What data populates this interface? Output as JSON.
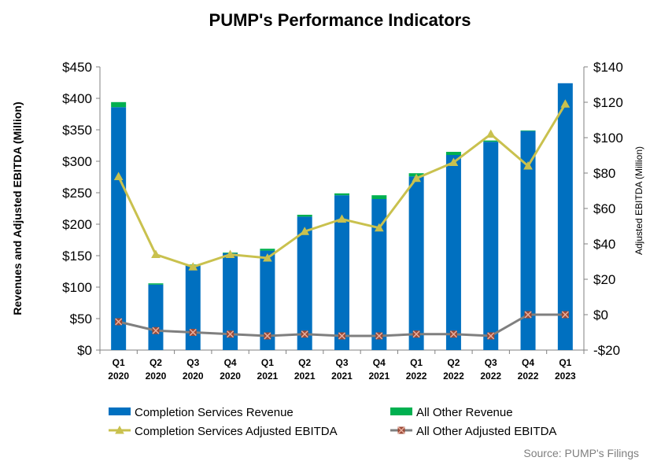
{
  "chart_data": {
    "type": "bar",
    "title": "PUMP's Performance Indicators",
    "categories": [
      [
        "Q1",
        "2020"
      ],
      [
        "Q2",
        "2020"
      ],
      [
        "Q3",
        "2020"
      ],
      [
        "Q4",
        "2020"
      ],
      [
        "Q1",
        "2021"
      ],
      [
        "Q2",
        "2021"
      ],
      [
        "Q3",
        "2021"
      ],
      [
        "Q4",
        "2021"
      ],
      [
        "Q1",
        "2022"
      ],
      [
        "Q2",
        "2022"
      ],
      [
        "Q3",
        "2022"
      ],
      [
        "Q4",
        "2022"
      ],
      [
        "Q1",
        "2023"
      ]
    ],
    "ylabel": "Revenues and Adjusted EBITDA (Million)",
    "y2label": "Adjusted EBITDA (Million)",
    "ylim": [
      0,
      450
    ],
    "ytick_values": [
      0,
      50,
      100,
      150,
      200,
      250,
      300,
      350,
      400,
      450
    ],
    "ytick_labels": [
      "$0",
      "$50",
      "$100",
      "$150",
      "$200",
      "$250",
      "$300",
      "$350",
      "$400",
      "$450"
    ],
    "y2lim": [
      -20,
      140
    ],
    "y2tick_values": [
      -20,
      0,
      20,
      40,
      60,
      80,
      100,
      120,
      140
    ],
    "y2tick_labels": [
      "-$20",
      "$0",
      "$20",
      "$40",
      "$60",
      "$80",
      "$100",
      "$120",
      "$140"
    ],
    "series": [
      {
        "name": "Completion Services Revenue",
        "kind": "bar",
        "axis": "left",
        "color": "#0070C0",
        "values": [
          386,
          104,
          134,
          154,
          158,
          212,
          246,
          240,
          276,
          310,
          331,
          348,
          424
        ]
      },
      {
        "name": "All Other Revenue",
        "kind": "bar-stacked",
        "axis": "left",
        "color": "#00B050",
        "values": [
          8,
          2,
          2,
          1,
          3,
          3,
          3,
          6,
          5,
          5,
          2,
          1,
          0
        ]
      },
      {
        "name": "Completion Services Adjusted EBITDA",
        "kind": "line",
        "axis": "right",
        "color": "#C9C14E",
        "marker": "triangle",
        "values": [
          78,
          34,
          27,
          34,
          32,
          47,
          54,
          49,
          77,
          86,
          102,
          84,
          119
        ]
      },
      {
        "name": "All Other Adjusted EBITDA",
        "kind": "line",
        "axis": "right",
        "color": "#7F7F7F",
        "marker": "x-square",
        "marker_color": "#9C4A36",
        "values": [
          -4,
          -9,
          -10,
          -11,
          -12,
          -11,
          -12,
          -12,
          -11,
          -11,
          -12,
          0,
          0
        ]
      }
    ],
    "legend_position": "bottom",
    "grid": false
  },
  "footer": {
    "source": "Source:  PUMP's Filings"
  }
}
